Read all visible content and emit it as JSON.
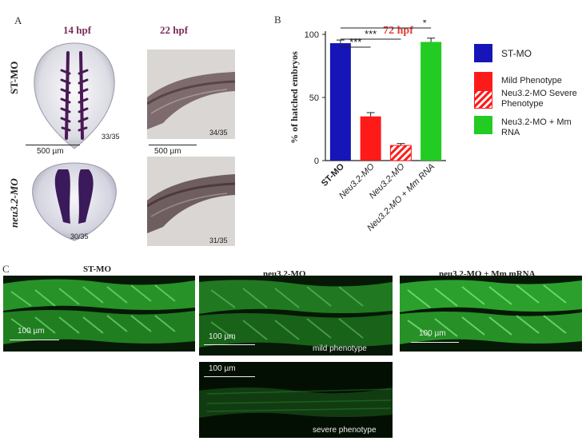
{
  "figure": {
    "panel_a": {
      "letter": "A",
      "stages": [
        "14 hpf",
        "22 hpf"
      ],
      "rows": [
        "ST-MO",
        "neu3.2-MO"
      ],
      "counts": [
        "33/35",
        "34/35",
        "30/35",
        "31/35"
      ],
      "scale_bar": "500 µm"
    },
    "panel_b": {
      "letter": "B",
      "title": "72 hpf",
      "ylabel": "% of hatched embryos",
      "significance": [
        "***",
        "***",
        "*"
      ]
    },
    "panel_c": {
      "letter": "C",
      "titles": [
        "ST-MO",
        "neu3.2-MO",
        "neu3.2-MO + Mm mRNA"
      ],
      "scale_bar": "100 µm",
      "captions": [
        "mild phenotype",
        "severe phenotype"
      ]
    },
    "colors": {
      "stage": "#7a2a5a",
      "title_red": "#e0413a",
      "st_mo": "#1515b8",
      "mild": "#ff1a1a",
      "severe": "#ff1a1a",
      "rescue": "#22cc22",
      "fluorescence": "#2fd12f"
    }
  },
  "chart_data": {
    "type": "bar",
    "title": "72 hpf",
    "xlabel": "",
    "ylabel": "% of hatched embryos",
    "ylim": [
      0,
      100
    ],
    "yticks": [
      0,
      50,
      100
    ],
    "categories": [
      "ST-MO",
      "Neu3.2-MO",
      "Neu3.2-MO",
      "Neu3.2-MO + Mm RNA"
    ],
    "values": [
      93,
      35,
      12,
      94
    ],
    "errors": [
      2.5,
      3,
      1.5,
      3
    ],
    "bar_colors": [
      "#1515b8",
      "#ff1a1a",
      "hatch-red",
      "#22cc22"
    ],
    "legend": [
      {
        "label": "ST-MO",
        "color": "#1515b8"
      },
      {
        "label": "Mild Phenotype",
        "color": "#ff1a1a"
      },
      {
        "label": "Neu3.2-MO Severe Phenotype",
        "color": "hatch-red"
      },
      {
        "label": "Neu3.2-MO + Mm RNA",
        "color": "#22cc22"
      }
    ],
    "legend_position": "right",
    "grid": false
  }
}
